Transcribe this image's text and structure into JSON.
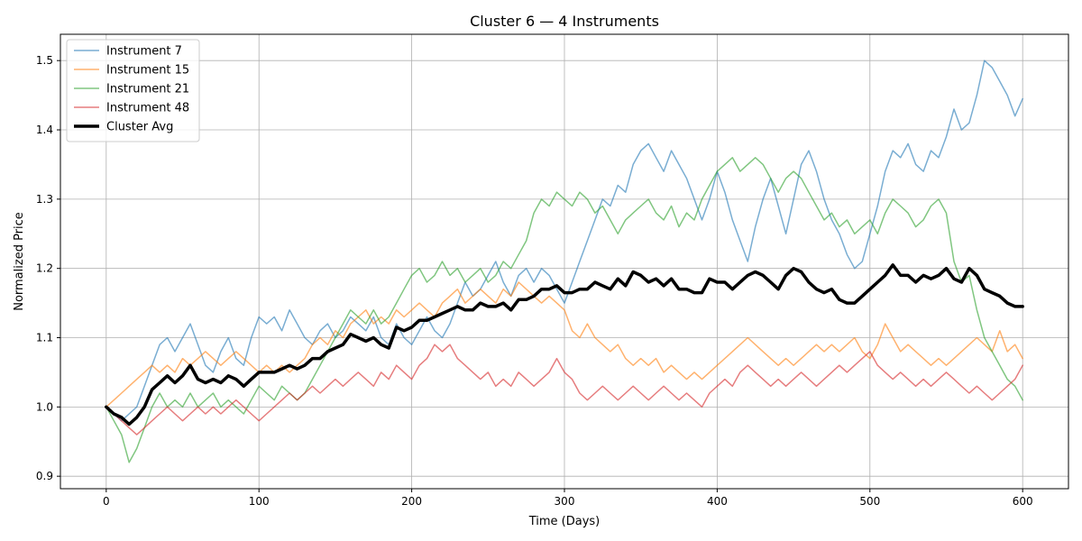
{
  "chart_data": {
    "type": "line",
    "title": "Cluster 6 — 4 Instruments",
    "xlabel": "Time (Days)",
    "ylabel": "Normalized Price",
    "xlim": [
      -30,
      630
    ],
    "ylim": [
      0.882,
      1.538
    ],
    "xticks": [
      0,
      100,
      200,
      300,
      400,
      500,
      600
    ],
    "yticks": [
      0.9,
      1.0,
      1.1,
      1.2,
      1.3,
      1.4,
      1.5
    ],
    "grid": true,
    "legend_position": "top-left",
    "series": [
      {
        "name": "Instrument 7",
        "color": "#1f77b4",
        "alpha": 0.6,
        "width": 1.5,
        "x": [
          0,
          5,
          10,
          15,
          20,
          25,
          30,
          35,
          40,
          45,
          50,
          55,
          60,
          65,
          70,
          75,
          80,
          85,
          90,
          95,
          100,
          105,
          110,
          115,
          120,
          125,
          130,
          135,
          140,
          145,
          150,
          155,
          160,
          165,
          170,
          175,
          180,
          185,
          190,
          195,
          200,
          205,
          210,
          215,
          220,
          225,
          230,
          235,
          240,
          245,
          250,
          255,
          260,
          265,
          270,
          275,
          280,
          285,
          290,
          295,
          300,
          305,
          310,
          315,
          320,
          325,
          330,
          335,
          340,
          345,
          350,
          355,
          360,
          365,
          370,
          375,
          380,
          385,
          390,
          395,
          400,
          405,
          410,
          415,
          420,
          425,
          430,
          435,
          440,
          445,
          450,
          455,
          460,
          465,
          470,
          475,
          480,
          485,
          490,
          495,
          500,
          505,
          510,
          515,
          520,
          525,
          530,
          535,
          540,
          545,
          550,
          555,
          560,
          565,
          570,
          575,
          580,
          585,
          590,
          595,
          600
        ],
        "y": [
          1.0,
          0.99,
          0.98,
          0.99,
          1.0,
          1.03,
          1.06,
          1.09,
          1.1,
          1.08,
          1.1,
          1.12,
          1.09,
          1.06,
          1.05,
          1.08,
          1.1,
          1.07,
          1.06,
          1.1,
          1.13,
          1.12,
          1.13,
          1.11,
          1.14,
          1.12,
          1.1,
          1.09,
          1.11,
          1.12,
          1.1,
          1.11,
          1.13,
          1.12,
          1.11,
          1.13,
          1.1,
          1.09,
          1.12,
          1.1,
          1.09,
          1.11,
          1.13,
          1.11,
          1.1,
          1.12,
          1.15,
          1.18,
          1.16,
          1.17,
          1.19,
          1.21,
          1.18,
          1.16,
          1.19,
          1.2,
          1.18,
          1.2,
          1.19,
          1.17,
          1.15,
          1.18,
          1.21,
          1.24,
          1.27,
          1.3,
          1.29,
          1.32,
          1.31,
          1.35,
          1.37,
          1.38,
          1.36,
          1.34,
          1.37,
          1.35,
          1.33,
          1.3,
          1.27,
          1.3,
          1.34,
          1.31,
          1.27,
          1.24,
          1.21,
          1.26,
          1.3,
          1.33,
          1.29,
          1.25,
          1.3,
          1.35,
          1.37,
          1.34,
          1.3,
          1.27,
          1.25,
          1.22,
          1.2,
          1.21,
          1.25,
          1.29,
          1.34,
          1.37,
          1.36,
          1.38,
          1.35,
          1.34,
          1.37,
          1.36,
          1.39,
          1.43,
          1.4,
          1.41,
          1.45,
          1.5,
          1.49,
          1.47,
          1.45,
          1.42,
          1.445
        ]
      },
      {
        "name": "Instrument 15",
        "color": "#ff7f0e",
        "alpha": 0.6,
        "width": 1.5,
        "x": [
          0,
          5,
          10,
          15,
          20,
          25,
          30,
          35,
          40,
          45,
          50,
          55,
          60,
          65,
          70,
          75,
          80,
          85,
          90,
          95,
          100,
          105,
          110,
          115,
          120,
          125,
          130,
          135,
          140,
          145,
          150,
          155,
          160,
          165,
          170,
          175,
          180,
          185,
          190,
          195,
          200,
          205,
          210,
          215,
          220,
          225,
          230,
          235,
          240,
          245,
          250,
          255,
          260,
          265,
          270,
          275,
          280,
          285,
          290,
          295,
          300,
          305,
          310,
          315,
          320,
          325,
          330,
          335,
          340,
          345,
          350,
          355,
          360,
          365,
          370,
          375,
          380,
          385,
          390,
          395,
          400,
          405,
          410,
          415,
          420,
          425,
          430,
          435,
          440,
          445,
          450,
          455,
          460,
          465,
          470,
          475,
          480,
          485,
          490,
          495,
          500,
          505,
          510,
          515,
          520,
          525,
          530,
          535,
          540,
          545,
          550,
          555,
          560,
          565,
          570,
          575,
          580,
          585,
          590,
          595,
          600
        ],
        "y": [
          1.0,
          1.01,
          1.02,
          1.03,
          1.04,
          1.05,
          1.06,
          1.05,
          1.06,
          1.05,
          1.07,
          1.06,
          1.07,
          1.08,
          1.07,
          1.06,
          1.07,
          1.08,
          1.07,
          1.06,
          1.05,
          1.06,
          1.05,
          1.06,
          1.05,
          1.06,
          1.07,
          1.09,
          1.1,
          1.09,
          1.11,
          1.1,
          1.12,
          1.13,
          1.14,
          1.12,
          1.13,
          1.12,
          1.14,
          1.13,
          1.14,
          1.15,
          1.14,
          1.13,
          1.15,
          1.16,
          1.17,
          1.15,
          1.16,
          1.17,
          1.16,
          1.15,
          1.17,
          1.16,
          1.18,
          1.17,
          1.16,
          1.15,
          1.16,
          1.15,
          1.14,
          1.11,
          1.1,
          1.12,
          1.1,
          1.09,
          1.08,
          1.09,
          1.07,
          1.06,
          1.07,
          1.06,
          1.07,
          1.05,
          1.06,
          1.05,
          1.04,
          1.05,
          1.04,
          1.05,
          1.06,
          1.07,
          1.08,
          1.09,
          1.1,
          1.09,
          1.08,
          1.07,
          1.06,
          1.07,
          1.06,
          1.07,
          1.08,
          1.09,
          1.08,
          1.09,
          1.08,
          1.09,
          1.1,
          1.08,
          1.07,
          1.09,
          1.12,
          1.1,
          1.08,
          1.09,
          1.08,
          1.07,
          1.06,
          1.07,
          1.06,
          1.07,
          1.08,
          1.09,
          1.1,
          1.09,
          1.08,
          1.11,
          1.08,
          1.09,
          1.07
        ]
      },
      {
        "name": "Instrument 21",
        "color": "#2ca02c",
        "alpha": 0.6,
        "width": 1.5,
        "x": [
          0,
          5,
          10,
          15,
          20,
          25,
          30,
          35,
          40,
          45,
          50,
          55,
          60,
          65,
          70,
          75,
          80,
          85,
          90,
          95,
          100,
          105,
          110,
          115,
          120,
          125,
          130,
          135,
          140,
          145,
          150,
          155,
          160,
          165,
          170,
          175,
          180,
          185,
          190,
          195,
          200,
          205,
          210,
          215,
          220,
          225,
          230,
          235,
          240,
          245,
          250,
          255,
          260,
          265,
          270,
          275,
          280,
          285,
          290,
          295,
          300,
          305,
          310,
          315,
          320,
          325,
          330,
          335,
          340,
          345,
          350,
          355,
          360,
          365,
          370,
          375,
          380,
          385,
          390,
          395,
          400,
          405,
          410,
          415,
          420,
          425,
          430,
          435,
          440,
          445,
          450,
          455,
          460,
          465,
          470,
          475,
          480,
          485,
          490,
          495,
          500,
          505,
          510,
          515,
          520,
          525,
          530,
          535,
          540,
          545,
          550,
          555,
          560,
          565,
          570,
          575,
          580,
          585,
          590,
          595,
          600
        ],
        "y": [
          1.0,
          0.98,
          0.96,
          0.92,
          0.94,
          0.97,
          1.0,
          1.02,
          1.0,
          1.01,
          1.0,
          1.02,
          1.0,
          1.01,
          1.02,
          1.0,
          1.01,
          1.0,
          0.99,
          1.01,
          1.03,
          1.02,
          1.01,
          1.03,
          1.02,
          1.01,
          1.02,
          1.04,
          1.06,
          1.08,
          1.1,
          1.12,
          1.14,
          1.13,
          1.12,
          1.14,
          1.12,
          1.13,
          1.15,
          1.17,
          1.19,
          1.2,
          1.18,
          1.19,
          1.21,
          1.19,
          1.2,
          1.18,
          1.19,
          1.2,
          1.18,
          1.19,
          1.21,
          1.2,
          1.22,
          1.24,
          1.28,
          1.3,
          1.29,
          1.31,
          1.3,
          1.29,
          1.31,
          1.3,
          1.28,
          1.29,
          1.27,
          1.25,
          1.27,
          1.28,
          1.29,
          1.3,
          1.28,
          1.27,
          1.29,
          1.26,
          1.28,
          1.27,
          1.3,
          1.32,
          1.34,
          1.35,
          1.36,
          1.34,
          1.35,
          1.36,
          1.35,
          1.33,
          1.31,
          1.33,
          1.34,
          1.33,
          1.31,
          1.29,
          1.27,
          1.28,
          1.26,
          1.27,
          1.25,
          1.26,
          1.27,
          1.25,
          1.28,
          1.3,
          1.29,
          1.28,
          1.26,
          1.27,
          1.29,
          1.3,
          1.28,
          1.21,
          1.18,
          1.19,
          1.14,
          1.1,
          1.08,
          1.06,
          1.04,
          1.03,
          1.01
        ]
      },
      {
        "name": "Instrument 48",
        "color": "#d62728",
        "alpha": 0.6,
        "width": 1.5,
        "x": [
          0,
          5,
          10,
          15,
          20,
          25,
          30,
          35,
          40,
          45,
          50,
          55,
          60,
          65,
          70,
          75,
          80,
          85,
          90,
          95,
          100,
          105,
          110,
          115,
          120,
          125,
          130,
          135,
          140,
          145,
          150,
          155,
          160,
          165,
          170,
          175,
          180,
          185,
          190,
          195,
          200,
          205,
          210,
          215,
          220,
          225,
          230,
          235,
          240,
          245,
          250,
          255,
          260,
          265,
          270,
          275,
          280,
          285,
          290,
          295,
          300,
          305,
          310,
          315,
          320,
          325,
          330,
          335,
          340,
          345,
          350,
          355,
          360,
          365,
          370,
          375,
          380,
          385,
          390,
          395,
          400,
          405,
          410,
          415,
          420,
          425,
          430,
          435,
          440,
          445,
          450,
          455,
          460,
          465,
          470,
          475,
          480,
          485,
          490,
          495,
          500,
          505,
          510,
          515,
          520,
          525,
          530,
          535,
          540,
          545,
          550,
          555,
          560,
          565,
          570,
          575,
          580,
          585,
          590,
          595,
          600
        ],
        "y": [
          1.0,
          0.99,
          0.98,
          0.97,
          0.96,
          0.97,
          0.98,
          0.99,
          1.0,
          0.99,
          0.98,
          0.99,
          1.0,
          0.99,
          1.0,
          0.99,
          1.0,
          1.01,
          1.0,
          0.99,
          0.98,
          0.99,
          1.0,
          1.01,
          1.02,
          1.01,
          1.02,
          1.03,
          1.02,
          1.03,
          1.04,
          1.03,
          1.04,
          1.05,
          1.04,
          1.03,
          1.05,
          1.04,
          1.06,
          1.05,
          1.04,
          1.06,
          1.07,
          1.09,
          1.08,
          1.09,
          1.07,
          1.06,
          1.05,
          1.04,
          1.05,
          1.03,
          1.04,
          1.03,
          1.05,
          1.04,
          1.03,
          1.04,
          1.05,
          1.07,
          1.05,
          1.04,
          1.02,
          1.01,
          1.02,
          1.03,
          1.02,
          1.01,
          1.02,
          1.03,
          1.02,
          1.01,
          1.02,
          1.03,
          1.02,
          1.01,
          1.02,
          1.01,
          1.0,
          1.02,
          1.03,
          1.04,
          1.03,
          1.05,
          1.06,
          1.05,
          1.04,
          1.03,
          1.04,
          1.03,
          1.04,
          1.05,
          1.04,
          1.03,
          1.04,
          1.05,
          1.06,
          1.05,
          1.06,
          1.07,
          1.08,
          1.06,
          1.05,
          1.04,
          1.05,
          1.04,
          1.03,
          1.04,
          1.03,
          1.04,
          1.05,
          1.04,
          1.03,
          1.02,
          1.03,
          1.02,
          1.01,
          1.02,
          1.03,
          1.04,
          1.06
        ]
      },
      {
        "name": "Cluster Avg",
        "color": "#000000",
        "alpha": 1.0,
        "width": 3.5,
        "x": [
          0,
          5,
          10,
          15,
          20,
          25,
          30,
          35,
          40,
          45,
          50,
          55,
          60,
          65,
          70,
          75,
          80,
          85,
          90,
          95,
          100,
          105,
          110,
          115,
          120,
          125,
          130,
          135,
          140,
          145,
          150,
          155,
          160,
          165,
          170,
          175,
          180,
          185,
          190,
          195,
          200,
          205,
          210,
          215,
          220,
          225,
          230,
          235,
          240,
          245,
          250,
          255,
          260,
          265,
          270,
          275,
          280,
          285,
          290,
          295,
          300,
          305,
          310,
          315,
          320,
          325,
          330,
          335,
          340,
          345,
          350,
          355,
          360,
          365,
          370,
          375,
          380,
          385,
          390,
          395,
          400,
          405,
          410,
          415,
          420,
          425,
          430,
          435,
          440,
          445,
          450,
          455,
          460,
          465,
          470,
          475,
          480,
          485,
          490,
          495,
          500,
          505,
          510,
          515,
          520,
          525,
          530,
          535,
          540,
          545,
          550,
          555,
          560,
          565,
          570,
          575,
          580,
          585,
          590,
          595,
          600
        ],
        "y": [
          1.0,
          0.99,
          0.985,
          0.975,
          0.985,
          1.0,
          1.025,
          1.035,
          1.045,
          1.035,
          1.045,
          1.06,
          1.04,
          1.035,
          1.04,
          1.035,
          1.045,
          1.04,
          1.03,
          1.04,
          1.05,
          1.05,
          1.05,
          1.055,
          1.06,
          1.055,
          1.06,
          1.07,
          1.07,
          1.08,
          1.085,
          1.09,
          1.105,
          1.1,
          1.095,
          1.1,
          1.09,
          1.085,
          1.115,
          1.11,
          1.115,
          1.125,
          1.125,
          1.13,
          1.135,
          1.14,
          1.145,
          1.14,
          1.14,
          1.15,
          1.145,
          1.145,
          1.15,
          1.14,
          1.155,
          1.155,
          1.16,
          1.17,
          1.17,
          1.175,
          1.165,
          1.165,
          1.17,
          1.17,
          1.18,
          1.175,
          1.17,
          1.185,
          1.175,
          1.195,
          1.19,
          1.18,
          1.185,
          1.175,
          1.185,
          1.17,
          1.17,
          1.165,
          1.165,
          1.185,
          1.18,
          1.18,
          1.17,
          1.18,
          1.19,
          1.195,
          1.19,
          1.18,
          1.17,
          1.19,
          1.2,
          1.195,
          1.18,
          1.17,
          1.165,
          1.17,
          1.155,
          1.15,
          1.15,
          1.16,
          1.17,
          1.18,
          1.19,
          1.205,
          1.19,
          1.19,
          1.18,
          1.19,
          1.185,
          1.19,
          1.2,
          1.185,
          1.18,
          1.2,
          1.19,
          1.17,
          1.165,
          1.16,
          1.15,
          1.145,
          1.145
        ]
      }
    ]
  }
}
